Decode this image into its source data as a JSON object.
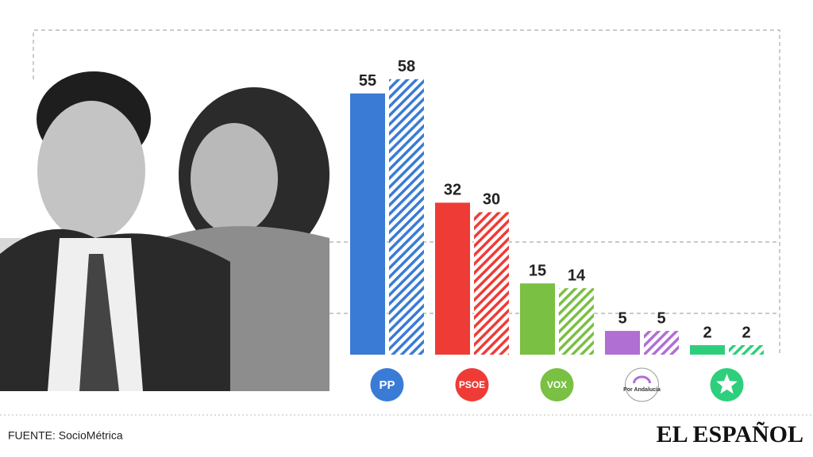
{
  "chart_data": {
    "type": "bar",
    "categories": [
      "PP",
      "PSOE",
      "VOX",
      "Por Andalucía",
      null
    ],
    "colors": [
      "#3a7bd5",
      "#ef3b36",
      "#79c043",
      "#b06fd3",
      "#2ecf7c"
    ],
    "series": [
      {
        "values": [
          55,
          32,
          15,
          5,
          2
        ]
      },
      {
        "values": [
          58,
          30,
          14,
          5,
          2
        ],
        "hatched": true
      }
    ],
    "ylim": [
      0,
      70
    ],
    "source": "FUENTE: SocioMétrica",
    "brand": "EL ESPAÑOL"
  }
}
